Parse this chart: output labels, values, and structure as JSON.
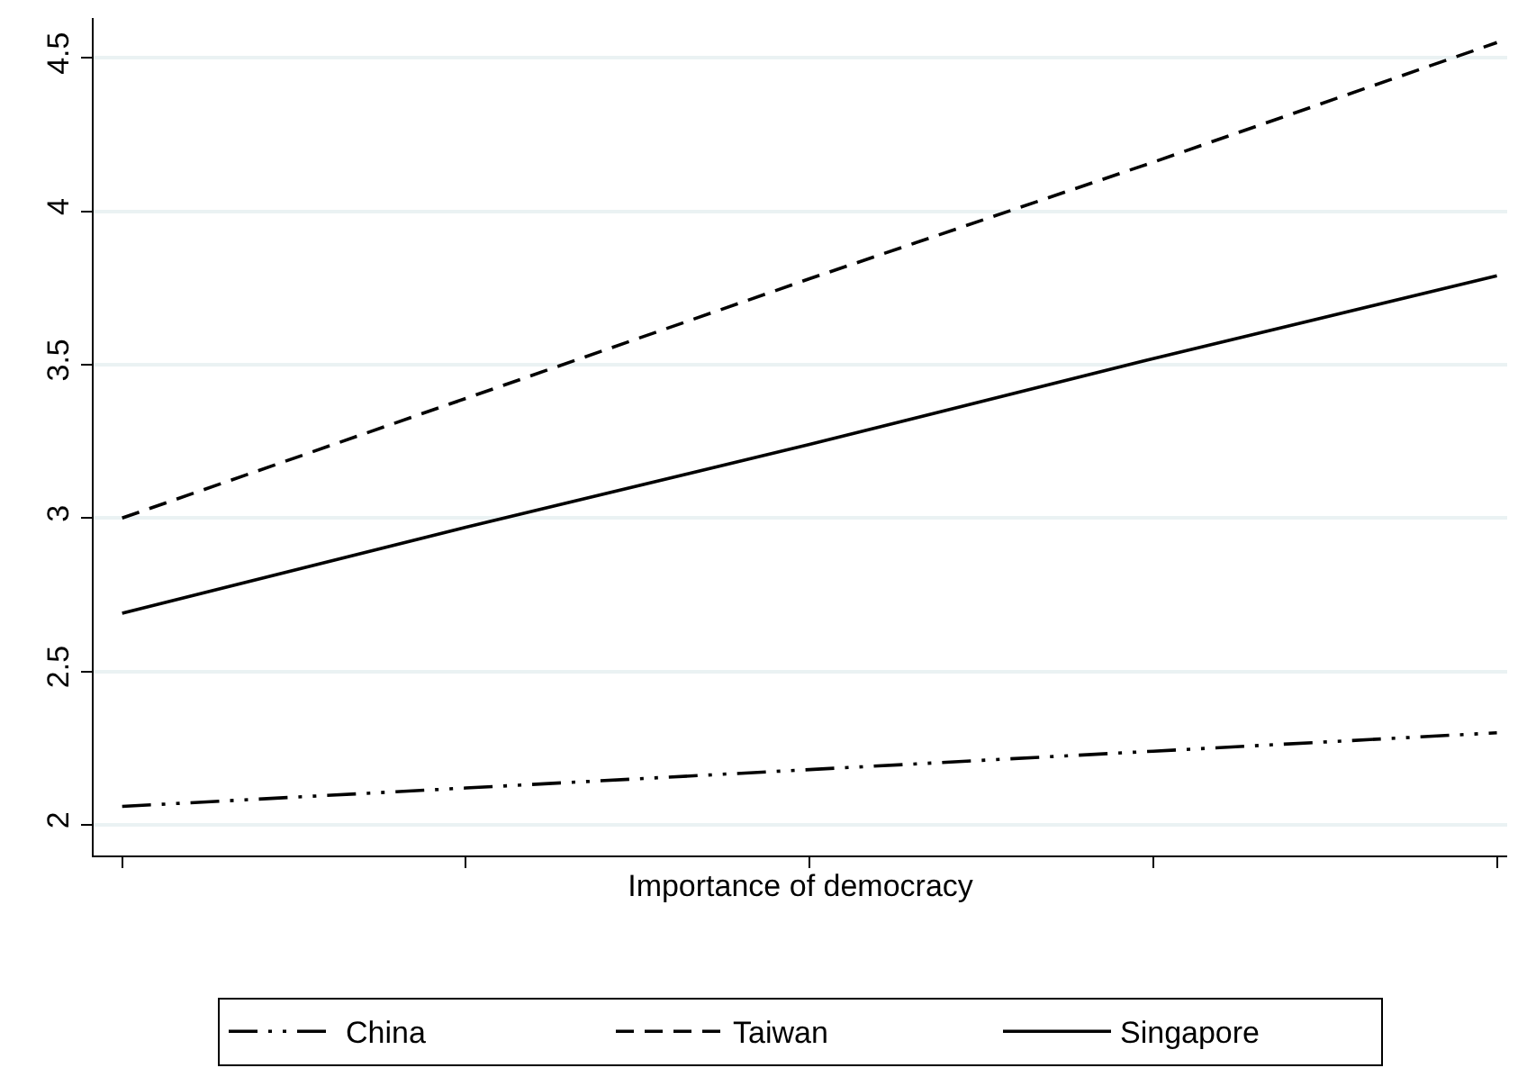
{
  "chart_data": {
    "type": "line",
    "xlabel": "Importance of democracy",
    "categories": [
      null,
      null,
      null,
      null,
      null
    ],
    "series": [
      {
        "name": "China",
        "color": "#000000",
        "line_style": "dashdot",
        "values": [
          2.06,
          2.12,
          2.18,
          2.24,
          2.3
        ]
      },
      {
        "name": "Taiwan",
        "color": "#000000",
        "line_style": "dashed",
        "values": [
          3.0,
          3.39,
          3.78,
          4.16,
          4.55
        ]
      },
      {
        "name": "Singapore",
        "color": "#000000",
        "line_style": "solid",
        "values": [
          2.69,
          2.97,
          3.24,
          3.52,
          3.79
        ]
      }
    ],
    "ylim": [
      1.9,
      4.63
    ],
    "yticks": [
      2,
      2.5,
      3,
      3.5,
      4,
      4.5
    ],
    "grid": "y",
    "legend": "bottom",
    "marker": "none",
    "tick_labels": "y"
  }
}
